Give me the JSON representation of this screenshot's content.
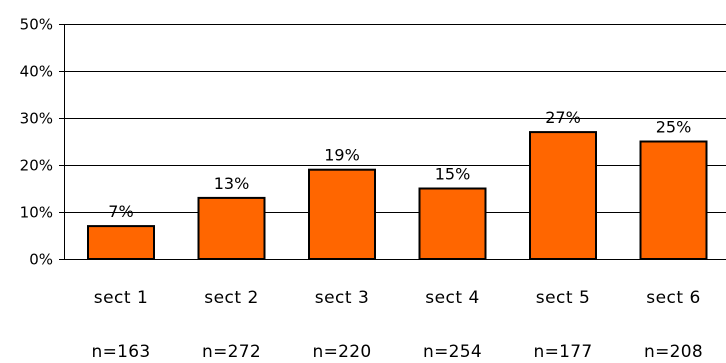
{
  "chart_data": {
    "type": "bar",
    "categories": [
      "sect 1",
      "sect 2",
      "sect 3",
      "sect 4",
      "sect 5",
      "sect 6"
    ],
    "sample_sizes": [
      "n=163",
      "n=272",
      "n=220",
      "n=254",
      "n=177",
      "n=208"
    ],
    "values": [
      7,
      13,
      19,
      15,
      27,
      25
    ],
    "data_labels": [
      "7%",
      "13%",
      "19%",
      "15%",
      "27%",
      "25%"
    ],
    "ylim": [
      0,
      50
    ],
    "y_ticks": [
      0,
      10,
      20,
      30,
      40,
      50
    ],
    "y_tick_labels": [
      "0%",
      "10%",
      "20%",
      "30%",
      "40%",
      "50%"
    ],
    "grid": true,
    "legend": "none",
    "title": "",
    "xlabel": "",
    "ylabel": "",
    "bar_color": "#ff6600",
    "bar_outline_color": "#000000",
    "gridline_color": "#000000"
  }
}
